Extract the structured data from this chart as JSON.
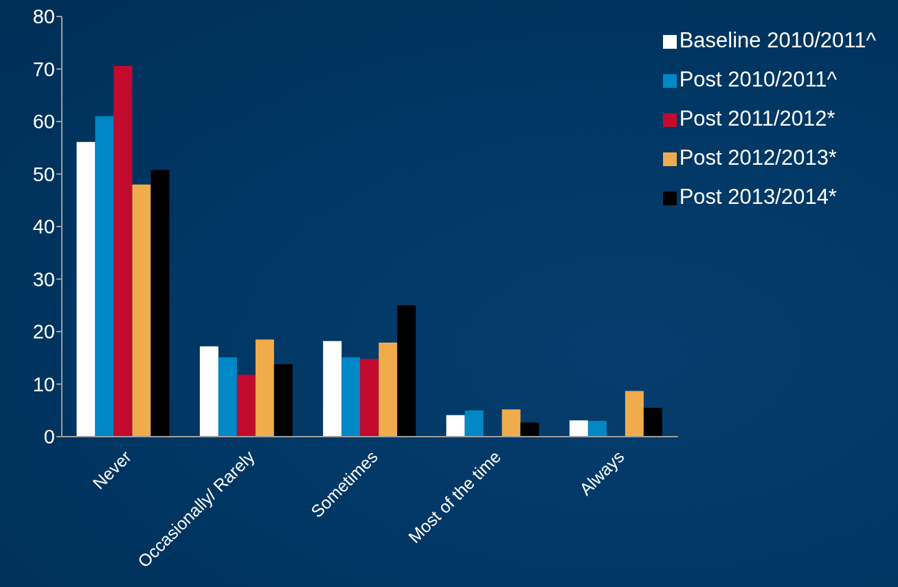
{
  "chart_data": {
    "type": "bar",
    "categories": [
      "Never",
      "Occasionally/ Rarely",
      "Sometimes",
      "Most of the time",
      "Always"
    ],
    "series": [
      {
        "name": "Baseline 2010/2011^",
        "color": "#ffffff",
        "values": [
          56.1,
          17.2,
          18.2,
          4.1,
          3.1
        ]
      },
      {
        "name": "Post 2010/2011^",
        "color": "#0087c6",
        "values": [
          61,
          15.1,
          15.1,
          5,
          3
        ]
      },
      {
        "name": "Post 2011/2012*",
        "color": "#c20a2f",
        "values": [
          70.6,
          11.8,
          14.8,
          null,
          null
        ]
      },
      {
        "name": "Post 2012/2013*",
        "color": "#f0ac4c",
        "values": [
          48,
          18.5,
          17.9,
          5.2,
          8.7
        ]
      },
      {
        "name": "Post 2013/2014*",
        "color": "#000000",
        "values": [
          50.8,
          13.8,
          25,
          2.7,
          5.5
        ]
      }
    ],
    "ylim": [
      0,
      80
    ],
    "yticks": [
      0,
      10,
      20,
      30,
      40,
      50,
      60,
      70,
      80
    ],
    "grid": false,
    "legend": "top right"
  }
}
